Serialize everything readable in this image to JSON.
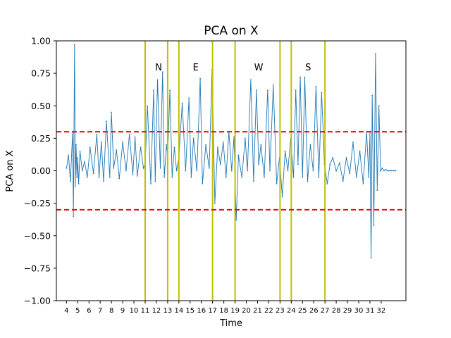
{
  "chart_data": {
    "type": "line",
    "title": "PCA on X",
    "xlabel": "Time",
    "ylabel": "PCA on X",
    "xlim": [
      3.1,
      34.2
    ],
    "ylim": [
      -1.0,
      1.0
    ],
    "x_ticks": [
      4,
      5,
      6,
      7,
      8,
      9,
      10,
      11,
      12,
      13,
      14,
      15,
      16,
      17,
      18,
      19,
      20,
      21,
      22,
      23,
      24,
      25,
      26,
      27,
      28,
      29,
      30,
      31,
      32
    ],
    "y_ticks": [
      -1.0,
      -0.75,
      -0.5,
      -0.25,
      0.0,
      0.25,
      0.5,
      0.75,
      1.0
    ],
    "y_tick_labels": [
      "−1.00",
      "−0.75",
      "−0.50",
      "−0.25",
      "0.00",
      "0.25",
      "0.50",
      "0.75",
      "1.00"
    ],
    "grid": false,
    "thresholds": [
      0.3,
      -0.3
    ],
    "threshold_color": "#dd1111",
    "series_color": "#1f77b4",
    "vline_color": "#bfbf00",
    "vlines": [
      11,
      13,
      14,
      17,
      19,
      23,
      24,
      27
    ],
    "region_labels": [
      {
        "text": "N",
        "x": 12.2,
        "y": 0.8
      },
      {
        "text": "E",
        "x": 15.5,
        "y": 0.8
      },
      {
        "text": "W",
        "x": 21.1,
        "y": 0.8
      },
      {
        "text": "S",
        "x": 25.5,
        "y": 0.8
      }
    ],
    "series": [
      {
        "x": [
          4.0,
          4.18,
          4.35,
          4.55,
          4.62,
          4.72,
          4.78,
          4.85,
          4.93,
          5.0,
          5.08,
          5.2,
          5.4,
          5.6,
          5.85,
          6.1,
          6.4,
          6.7,
          6.9,
          7.1,
          7.3,
          7.55,
          7.85,
          8.0,
          8.2,
          8.45,
          8.7,
          9.0,
          9.3,
          9.6,
          9.9,
          10.1,
          10.3,
          10.6,
          10.85,
          11.0,
          11.2,
          11.5,
          11.75,
          11.9,
          12.1,
          12.35,
          12.55,
          12.7,
          12.9,
          13.0,
          13.2,
          13.4,
          13.6,
          13.8,
          14.0,
          14.3,
          14.6,
          14.9,
          15.1,
          15.3,
          15.6,
          15.9,
          16.1,
          16.4,
          16.7,
          16.95,
          17.2,
          17.45,
          17.7,
          17.95,
          18.2,
          18.45,
          18.7,
          18.9,
          19.1,
          19.3,
          19.6,
          19.9,
          20.1,
          20.4,
          20.65,
          20.9,
          21.1,
          21.3,
          21.6,
          21.9,
          22.1,
          22.4,
          22.7,
          22.95,
          23.2,
          23.45,
          23.7,
          23.95,
          24.2,
          24.4,
          24.6,
          24.8,
          25.0,
          25.2,
          25.45,
          25.7,
          25.95,
          26.2,
          26.45,
          26.7,
          26.95,
          27.2,
          27.45,
          27.7,
          28.0,
          28.3,
          28.6,
          28.9,
          29.2,
          29.5,
          29.8,
          30.1,
          30.4,
          30.7,
          30.9,
          31.0,
          31.1,
          31.2,
          31.35,
          31.5,
          31.65,
          31.8,
          31.95,
          32.1,
          32.25,
          32.4,
          32.55,
          32.7,
          32.9,
          33.1,
          33.3
        ],
        "y": [
          0.02,
          0.12,
          -0.08,
          0.3,
          -0.35,
          0.97,
          -0.12,
          0.2,
          -0.05,
          0.1,
          -0.1,
          0.15,
          0.0,
          0.07,
          -0.05,
          0.18,
          -0.02,
          0.28,
          -0.05,
          0.22,
          -0.08,
          0.38,
          -0.05,
          0.45,
          0.02,
          0.16,
          -0.06,
          0.22,
          0.0,
          0.28,
          -0.03,
          0.26,
          -0.04,
          0.18,
          0.02,
          0.05,
          0.5,
          -0.1,
          0.62,
          -0.08,
          0.7,
          0.02,
          0.76,
          -0.05,
          0.2,
          0.1,
          0.62,
          -0.05,
          0.18,
          0.0,
          0.1,
          0.52,
          0.0,
          0.56,
          -0.05,
          0.25,
          0.0,
          0.71,
          -0.1,
          0.2,
          0.02,
          0.78,
          -0.25,
          0.18,
          0.05,
          0.22,
          -0.05,
          0.3,
          0.0,
          0.26,
          -0.38,
          0.12,
          -0.05,
          0.25,
          0.0,
          0.7,
          -0.08,
          0.62,
          0.05,
          0.2,
          -0.05,
          0.62,
          0.0,
          0.66,
          -0.1,
          0.1,
          -0.2,
          0.15,
          0.0,
          0.25,
          -0.05,
          0.62,
          0.05,
          0.72,
          -0.05,
          0.72,
          -0.08,
          0.2,
          0.0,
          0.65,
          -0.05,
          0.6,
          0.05,
          -0.1,
          0.05,
          0.1,
          0.0,
          0.06,
          -0.08,
          0.1,
          -0.02,
          0.22,
          -0.05,
          0.15,
          -0.1,
          0.3,
          -0.05,
          0.3,
          -0.67,
          0.58,
          -0.42,
          0.9,
          -0.15,
          0.5,
          0.0,
          0.02,
          0.0,
          0.01,
          0.0,
          0.0,
          0.0,
          0.0,
          0.0
        ]
      }
    ]
  }
}
